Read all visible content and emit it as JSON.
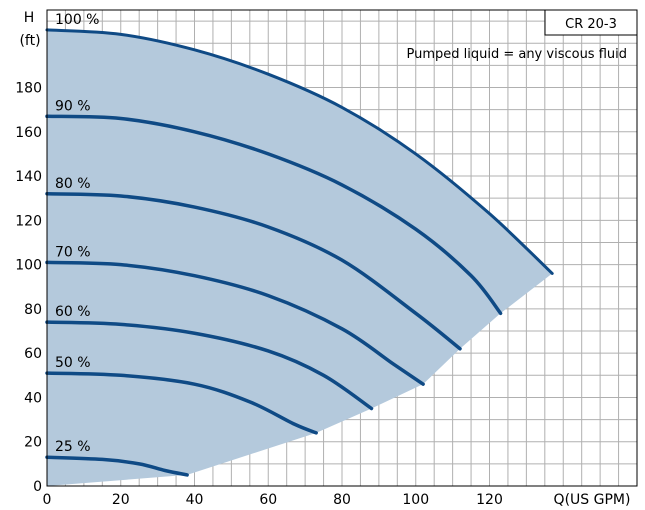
{
  "chart_data": {
    "type": "line",
    "title": "CR 20-3",
    "subtitle": "Pumped liquid = any viscous fluid",
    "ylabel_line1": "H",
    "ylabel_line2": "(ft)",
    "xlabel": "Q(US GPM)",
    "x_ticks": [
      "0",
      "20",
      "40",
      "60",
      "80",
      "100",
      "120"
    ],
    "y_ticks": [
      "0",
      "20",
      "40",
      "60",
      "80",
      "100",
      "120",
      "140",
      "160",
      "180"
    ],
    "xlim": [
      0,
      160
    ],
    "ylim": [
      0,
      215
    ],
    "grid": true,
    "colors": {
      "curve": "#0f4a85",
      "area": "#b4c9dc",
      "grid": "#b0b0b0"
    },
    "series": [
      {
        "name": "100 %",
        "points": [
          [
            0,
            206
          ],
          [
            20,
            204
          ],
          [
            40,
            197
          ],
          [
            60,
            186
          ],
          [
            80,
            171
          ],
          [
            100,
            150
          ],
          [
            120,
            123
          ],
          [
            137,
            96
          ]
        ]
      },
      {
        "name": "90 %",
        "points": [
          [
            0,
            167
          ],
          [
            20,
            166
          ],
          [
            40,
            160
          ],
          [
            60,
            150
          ],
          [
            80,
            136
          ],
          [
            100,
            116
          ],
          [
            115,
            95
          ],
          [
            123,
            78
          ]
        ]
      },
      {
        "name": "80 %",
        "points": [
          [
            0,
            132
          ],
          [
            20,
            131
          ],
          [
            40,
            126
          ],
          [
            60,
            117
          ],
          [
            80,
            102
          ],
          [
            100,
            78
          ],
          [
            112,
            62
          ]
        ]
      },
      {
        "name": "70 %",
        "points": [
          [
            0,
            101
          ],
          [
            20,
            100
          ],
          [
            40,
            95
          ],
          [
            60,
            86
          ],
          [
            80,
            71
          ],
          [
            94,
            55
          ],
          [
            102,
            46
          ]
        ]
      },
      {
        "name": "60 %",
        "points": [
          [
            0,
            74
          ],
          [
            20,
            73
          ],
          [
            40,
            69
          ],
          [
            60,
            61
          ],
          [
            75,
            50
          ],
          [
            88,
            35
          ]
        ]
      },
      {
        "name": "50 %",
        "points": [
          [
            0,
            51
          ],
          [
            20,
            50
          ],
          [
            40,
            46
          ],
          [
            55,
            38
          ],
          [
            67,
            28
          ],
          [
            73,
            24
          ]
        ]
      },
      {
        "name": "25 %",
        "points": [
          [
            0,
            13
          ],
          [
            15,
            12
          ],
          [
            25,
            10
          ],
          [
            32,
            7
          ],
          [
            38,
            5
          ]
        ]
      }
    ],
    "lower_bound": [
      [
        38,
        5
      ],
      [
        73,
        24
      ],
      [
        88,
        35
      ],
      [
        102,
        46
      ],
      [
        112,
        62
      ],
      [
        123,
        78
      ],
      [
        137,
        96
      ]
    ]
  }
}
